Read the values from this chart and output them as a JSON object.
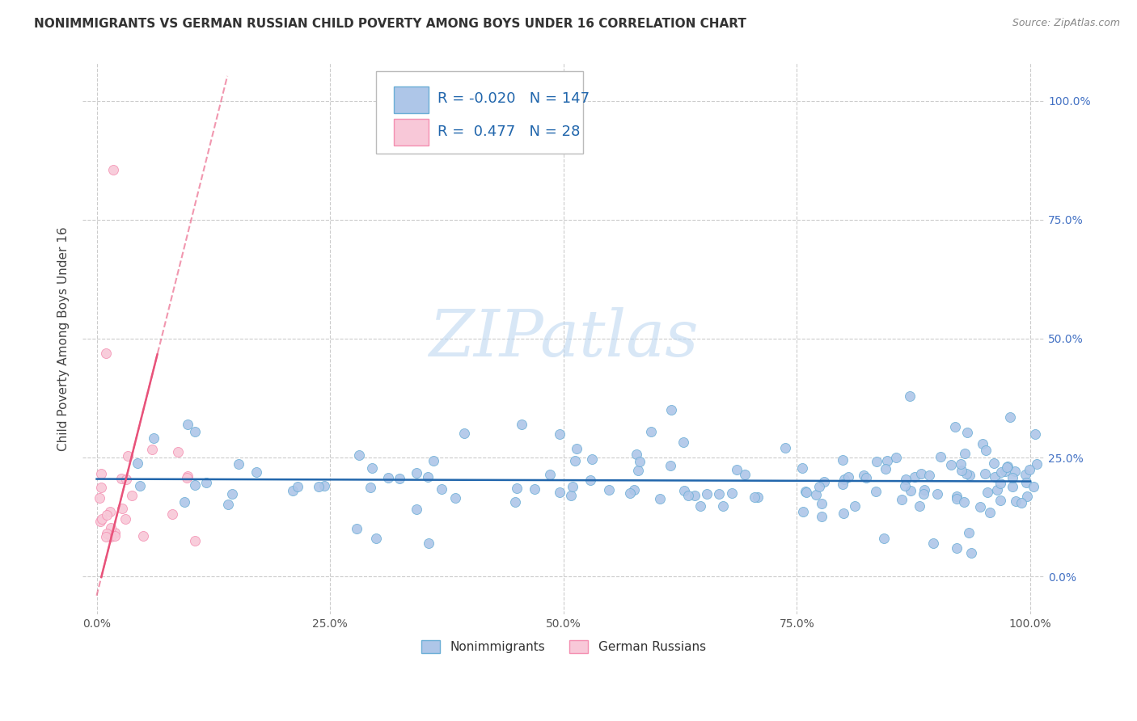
{
  "title": "NONIMMIGRANTS VS GERMAN RUSSIAN CHILD POVERTY AMONG BOYS UNDER 16 CORRELATION CHART",
  "source": "Source: ZipAtlas.com",
  "ylabel": "Child Poverty Among Boys Under 16",
  "watermark": "ZIPatlas",
  "nonimm_R": -0.02,
  "nonimm_N": 147,
  "gru_R": 0.477,
  "gru_N": 28,
  "nonimm_scatter_color": "#aec6e8",
  "nonimm_edge_color": "#6baed6",
  "gru_scatter_color": "#f8c8d8",
  "gru_edge_color": "#f48fb1",
  "trend_nonimm_color": "#2166ac",
  "trend_gru_color": "#e8527a",
  "background": "#ffffff",
  "grid_color": "#cccccc",
  "xlim": [
    -0.015,
    1.015
  ],
  "ylim": [
    -0.08,
    1.08
  ],
  "yticks": [
    0.0,
    0.25,
    0.5,
    0.75,
    1.0
  ],
  "ytick_labels": [
    "0.0%",
    "25.0%",
    "50.0%",
    "75.0%",
    "100.0%"
  ],
  "xticks": [
    0.0,
    0.25,
    0.5,
    0.75,
    1.0
  ],
  "xtick_labels": [
    "0.0%",
    "25.0%",
    "50.0%",
    "75.0%",
    "100.0%"
  ],
  "tick_color": "#4472c4",
  "title_fontsize": 11,
  "axis_label_fontsize": 11,
  "tick_fontsize": 10,
  "legend_fontsize": 13
}
